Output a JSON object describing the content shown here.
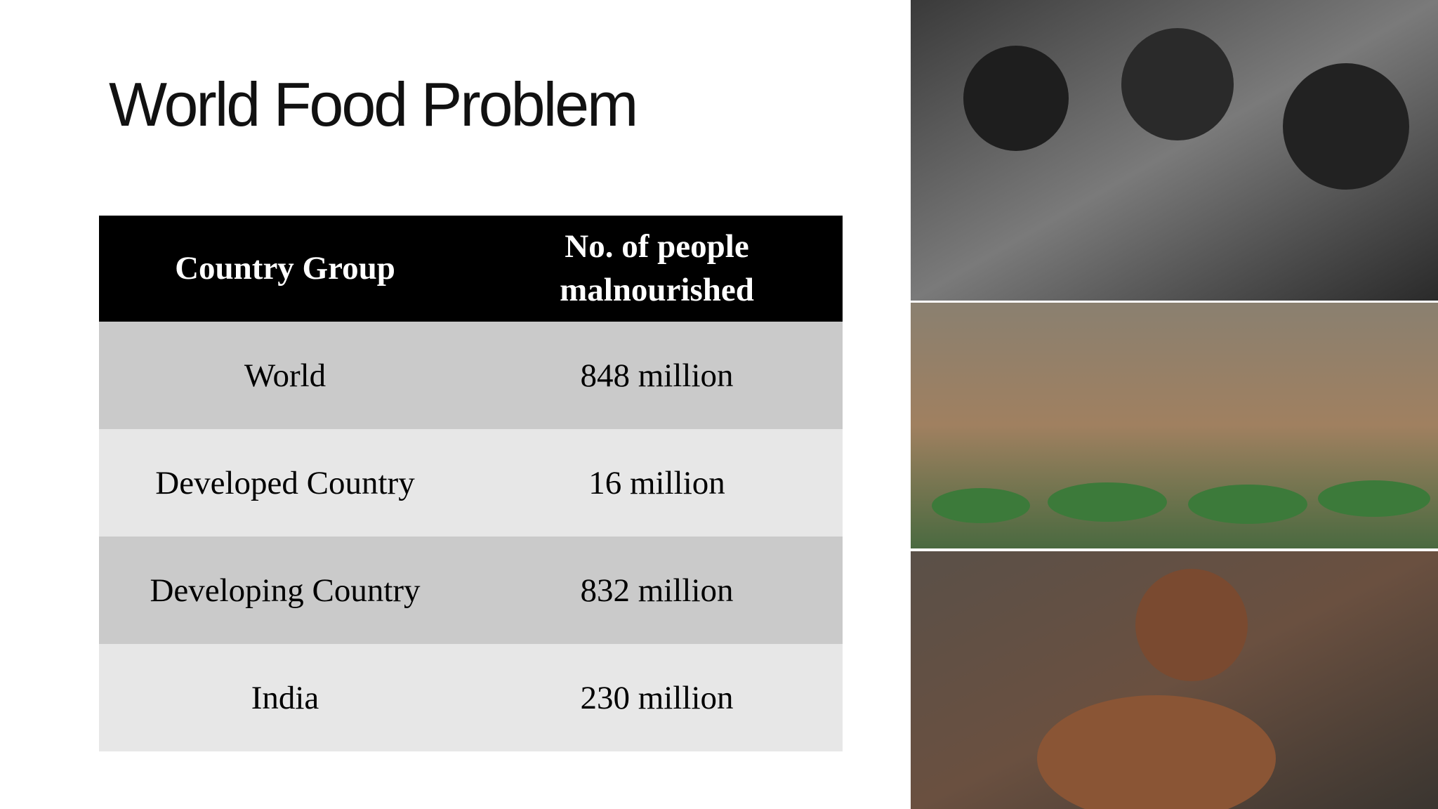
{
  "title": "World Food Problem",
  "table": {
    "header": [
      "Country Group",
      "No. of people malnourished"
    ],
    "rows": [
      [
        "World",
        "848 million"
      ],
      [
        "Developed Country",
        "16 million"
      ],
      [
        "Developing Country",
        "832 million"
      ],
      [
        "India",
        "230 million"
      ]
    ]
  }
}
